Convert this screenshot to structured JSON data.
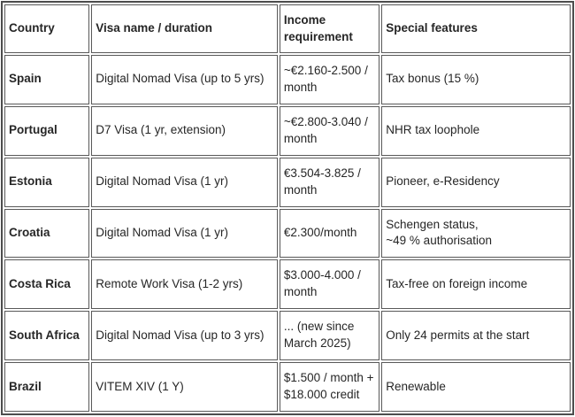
{
  "table": {
    "columns": [
      {
        "label": "Country"
      },
      {
        "label": "Visa name / duration"
      },
      {
        "label": "Income\nrequirement"
      },
      {
        "label": "Special features"
      }
    ],
    "rows": [
      {
        "country": "Spain",
        "visa": "Digital Nomad Visa (up to 5 yrs)",
        "income": "~€2.160-2.500 /\nmonth",
        "features": "Tax bonus (15 %)"
      },
      {
        "country": "Portugal",
        "visa": "D7 Visa (1 yr, extension)",
        "income": "~€2.800-3.040 /\nmonth",
        "features": "NHR tax loophole"
      },
      {
        "country": "Estonia",
        "visa": "Digital Nomad Visa (1 yr)",
        "income": "€3.504-3.825 /\nmonth",
        "features": "Pioneer, e-Residency"
      },
      {
        "country": "Croatia",
        "visa": "Digital Nomad Visa (1 yr)",
        "income": "€2.300/month",
        "features": "Schengen status,\n~49 % authorisation"
      },
      {
        "country": "Costa Rica",
        "visa": "Remote Work Visa (1-2 yrs)",
        "income": "$3.000-4.000 /\nmonth",
        "features": "Tax-free on foreign income"
      },
      {
        "country": "South Africa",
        "visa": "Digital Nomad Visa (up to 3 yrs)",
        "income": "... (new since\nMarch 2025)",
        "features": "Only 24 permits at the start"
      },
      {
        "country": "Brazil",
        "visa": "VITEM XIV (1 Y)",
        "income": "$1.500 / month +\n$18.000 credit",
        "features": "Renewable"
      }
    ]
  },
  "colors": {
    "outer_border": "#4d4d4d",
    "cell_border": "#595959",
    "text": "#262626",
    "background": "#ffffff"
  }
}
